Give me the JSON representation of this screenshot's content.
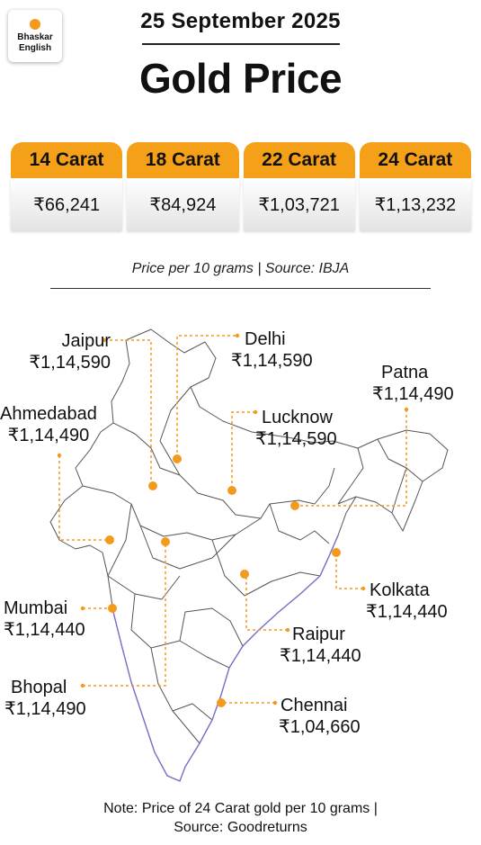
{
  "logo": {
    "line1": "Bhaskar",
    "line2": "English"
  },
  "header": {
    "date": "25 September 2025",
    "title": "Gold Price"
  },
  "prices": [
    {
      "label": "14 Carat",
      "value": "₹66,241"
    },
    {
      "label": "18 Carat",
      "value": "₹84,924"
    },
    {
      "label": "22 Carat",
      "value": "₹1,03,721"
    },
    {
      "label": "24 Carat",
      "value": "₹1,13,232"
    }
  ],
  "source_line": "Price per 10 grams | Source: IBJA",
  "colors": {
    "accent": "#f5a019",
    "marker": "#f39a1d",
    "map_outline": "#555555",
    "coast": "#7a6fc7"
  },
  "cities": [
    {
      "name": "Jaipur",
      "price": "₹1,14,590"
    },
    {
      "name": "Delhi",
      "price": "₹1,14,590"
    },
    {
      "name": "Patna",
      "price": "₹1,14,490"
    },
    {
      "name": "Ahmedabad",
      "price": "₹1,14,490"
    },
    {
      "name": "Lucknow",
      "price": "₹1,14,590"
    },
    {
      "name": "Kolkata",
      "price": "₹1,14,440"
    },
    {
      "name": "Mumbai",
      "price": "₹1,14,440"
    },
    {
      "name": "Raipur",
      "price": "₹1,14,440"
    },
    {
      "name": "Bhopal",
      "price": "₹1,14,490"
    },
    {
      "name": "Chennai",
      "price": "₹1,04,660"
    }
  ],
  "note": {
    "line1": "Note: Price of 24 Carat gold per 10 grams |",
    "line2": "Source: Goodreturns"
  }
}
